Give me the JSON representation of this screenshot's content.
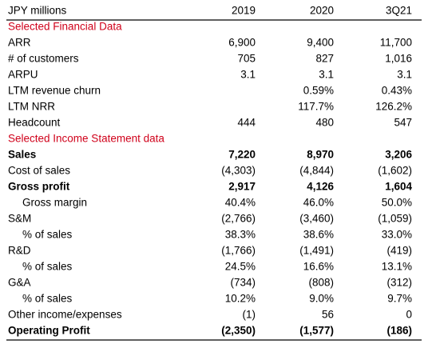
{
  "table": {
    "header": [
      "JPY millions",
      "2019",
      "2020",
      "3Q21"
    ],
    "rows": [
      {
        "section": "Selected Financial Data"
      },
      {
        "label": "ARR",
        "values": [
          "6,900",
          "9,400",
          "11,700"
        ]
      },
      {
        "label": "# of customers",
        "values": [
          "705",
          "827",
          "1,016"
        ]
      },
      {
        "label": "ARPU",
        "values": [
          "3.1",
          "3.1",
          "3.1"
        ]
      },
      {
        "label": "LTM revenue churn",
        "values": [
          null,
          "0.59%",
          "0.43%"
        ]
      },
      {
        "label": "LTM NRR",
        "values": [
          null,
          "117.7%",
          "126.2%"
        ]
      },
      {
        "label": "Headcount",
        "values": [
          "444",
          "480",
          "547"
        ]
      },
      {
        "section": "Selected Income Statement data"
      },
      {
        "label": "Sales",
        "values": [
          "7,220",
          "8,970",
          "3,206"
        ]
      },
      {
        "label": "Cost of sales",
        "values": [
          "(4,303)",
          "(4,844)",
          "(1,602)"
        ]
      },
      {
        "label": "Gross profit",
        "values": [
          "2,917",
          "4,126",
          "1,604"
        ]
      },
      {
        "label": "Gross margin",
        "values": [
          "40.4%",
          "46.0%",
          "50.0%"
        ]
      },
      {
        "label": "S&M",
        "values": [
          "(2,766)",
          "(3,460)",
          "(1,059)"
        ]
      },
      {
        "label": "% of sales",
        "values": [
          "38.3%",
          "38.6%",
          "33.0%"
        ]
      },
      {
        "label": "R&D",
        "values": [
          "(1,766)",
          "(1,491)",
          "(419)"
        ]
      },
      {
        "label": "% of sales",
        "values": [
          "24.5%",
          "16.6%",
          "13.1%"
        ]
      },
      {
        "label": "G&A",
        "values": [
          "(734)",
          "(808)",
          "(312)"
        ]
      },
      {
        "label": "% of sales",
        "values": [
          "10.2%",
          "9.0%",
          "9.7%"
        ]
      },
      {
        "label": "Other income/expenses",
        "values": [
          "(1)",
          "56",
          "0"
        ]
      },
      {
        "label": "Operating Profit",
        "values": [
          "(2,350)",
          "(1,577)",
          "(186)"
        ]
      }
    ]
  }
}
